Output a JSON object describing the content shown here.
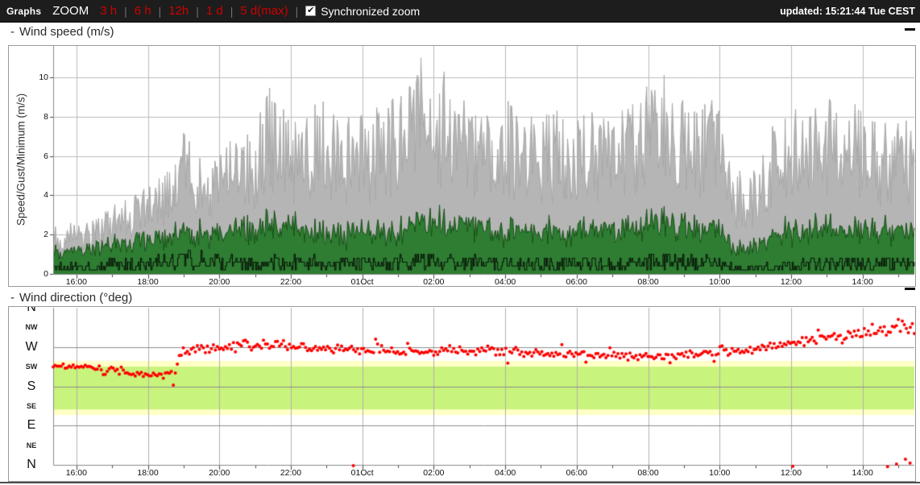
{
  "topbar": {
    "app_label": "Graphs",
    "zoom_label": "ZOOM",
    "zoom_ranges": [
      "3 h",
      "6 h",
      "12h",
      "1 d",
      "5 d(max)"
    ],
    "divider": "|",
    "sync_checkbox": {
      "checked": true,
      "label": "Synchronized zoom",
      "check_glyph": "✔"
    },
    "updated": "updated: 15:21:44 Tue CEST",
    "colors": {
      "bar_bg": "#1d1d1d",
      "link_red": "#d00000",
      "text": "#ffffff"
    }
  },
  "panels": [
    {
      "prefix": "-",
      "title": "Wind speed (m/s)"
    },
    {
      "prefix": "-",
      "title": "Wind direction (°deg)"
    }
  ],
  "chart_data": [
    {
      "type": "area",
      "title": "Wind speed (m/s)",
      "ylabel": "Speed/Gust/Minimum (m/s)",
      "ylim": [
        0,
        11.6
      ],
      "yticks": [
        0,
        2,
        4,
        6,
        8,
        10
      ],
      "x_hours_total": 24.1,
      "x_start_time": "15:21",
      "xticks": [
        {
          "t": 0.65,
          "label": "16:00"
        },
        {
          "t": 2.65,
          "label": "18:00"
        },
        {
          "t": 4.65,
          "label": "20:00"
        },
        {
          "t": 6.65,
          "label": "22:00"
        },
        {
          "t": 8.65,
          "label": "01Oct"
        },
        {
          "t": 10.65,
          "label": "02:00"
        },
        {
          "t": 12.65,
          "label": "04:00"
        },
        {
          "t": 14.65,
          "label": "06:00"
        },
        {
          "t": 16.65,
          "label": "08:00"
        },
        {
          "t": 18.65,
          "label": "10:00"
        },
        {
          "t": 20.65,
          "label": "12:00"
        },
        {
          "t": 22.65,
          "label": "14:00"
        }
      ],
      "grid_color": "#bbbbbb",
      "axis_color": "#888888",
      "samples": 740,
      "seed": 77,
      "representation": "envelope keyframes [hours_from_start, m/s] + noise texture",
      "series": [
        {
          "name": "gust",
          "kind": "area",
          "fill": "#b5b5b5",
          "stroke": "#a6a6a6",
          "noise_base": 0.45,
          "noise_span": 0.62,
          "envelope": [
            [
              0,
              2.4
            ],
            [
              0.8,
              2.6
            ],
            [
              1.6,
              3.2
            ],
            [
              2.3,
              3.9
            ],
            [
              3.0,
              4.8
            ],
            [
              3.4,
              5.2
            ],
            [
              3.7,
              7.8
            ],
            [
              4.1,
              5.6
            ],
            [
              4.7,
              6.3
            ],
            [
              5.4,
              6.6
            ],
            [
              6.1,
              9.0
            ],
            [
              6.7,
              7.2
            ],
            [
              7.6,
              8.6
            ],
            [
              8.5,
              7.4
            ],
            [
              9.6,
              8.9
            ],
            [
              10.35,
              10.5
            ],
            [
              10.7,
              8.2
            ],
            [
              11.0,
              10.6
            ],
            [
              11.7,
              7.6
            ],
            [
              12.6,
              8.6
            ],
            [
              13.5,
              7.6
            ],
            [
              14.6,
              8.2
            ],
            [
              15.6,
              7.2
            ],
            [
              16.4,
              8.6
            ],
            [
              17.0,
              9.9
            ],
            [
              17.8,
              7.8
            ],
            [
              18.5,
              8.8
            ],
            [
              19.0,
              5.2
            ],
            [
              19.5,
              4.6
            ],
            [
              20.2,
              7.6
            ],
            [
              21.2,
              8.2
            ],
            [
              22.0,
              8.8
            ],
            [
              23.0,
              7.4
            ],
            [
              24.1,
              7.8
            ]
          ]
        },
        {
          "name": "speed",
          "kind": "area",
          "fill": "#2e7d32",
          "stroke": "#155015",
          "noise_base": 0.4,
          "noise_span": 0.62,
          "envelope": [
            [
              0,
              1.6
            ],
            [
              1,
              1.8
            ],
            [
              2,
              2.2
            ],
            [
              3,
              2.5
            ],
            [
              3.7,
              2.8
            ],
            [
              4.7,
              2.9
            ],
            [
              6.1,
              3.4
            ],
            [
              7.6,
              3.0
            ],
            [
              8.5,
              2.8
            ],
            [
              9.6,
              3.1
            ],
            [
              10.35,
              3.5
            ],
            [
              11.0,
              3.6
            ],
            [
              12.6,
              3.1
            ],
            [
              13.5,
              2.9
            ],
            [
              14.6,
              3.2
            ],
            [
              15.6,
              2.9
            ],
            [
              16.4,
              3.2
            ],
            [
              17.0,
              3.7
            ],
            [
              18.5,
              3.1
            ],
            [
              19.0,
              2.0
            ],
            [
              19.5,
              1.8
            ],
            [
              20.2,
              2.9
            ],
            [
              21.2,
              3.2
            ],
            [
              22.0,
              3.4
            ],
            [
              23.0,
              3.0
            ],
            [
              24.1,
              3.1
            ]
          ]
        },
        {
          "name": "minimum",
          "kind": "stepline",
          "stroke": "#000000",
          "noise_base": 0.55,
          "noise_span": 0.75,
          "quantize": 0.2,
          "envelope": [
            [
              0,
              0.6
            ],
            [
              1.5,
              0.8
            ],
            [
              3,
              1.0
            ],
            [
              3.7,
              1.3
            ],
            [
              5,
              1.0
            ],
            [
              6.5,
              1.1
            ],
            [
              8,
              0.9
            ],
            [
              9.6,
              1.0
            ],
            [
              10.7,
              1.2
            ],
            [
              12.5,
              0.9
            ],
            [
              14,
              1.0
            ],
            [
              16,
              0.9
            ],
            [
              17,
              1.1
            ],
            [
              18.5,
              1.0
            ],
            [
              19.2,
              0.5
            ],
            [
              20,
              0.6
            ],
            [
              21,
              0.9
            ],
            [
              22,
              1.0
            ],
            [
              23.5,
              0.9
            ],
            [
              24.1,
              0.9
            ]
          ]
        }
      ]
    },
    {
      "type": "scatter",
      "title": "Wind direction (°deg)",
      "ylim_deg": [
        0,
        360
      ],
      "yticks": [
        {
          "deg": 360,
          "label": "N",
          "major": true
        },
        {
          "deg": 315,
          "label": "NW",
          "major": false
        },
        {
          "deg": 270,
          "label": "W",
          "major": true
        },
        {
          "deg": 225,
          "label": "SW",
          "major": false
        },
        {
          "deg": 180,
          "label": "S",
          "major": true
        },
        {
          "deg": 135,
          "label": "SE",
          "major": false
        },
        {
          "deg": 90,
          "label": "E",
          "major": true
        },
        {
          "deg": 45,
          "label": "NE",
          "major": false
        },
        {
          "deg": 0,
          "label": "N",
          "major": true
        }
      ],
      "grid_degs": [
        270,
        180,
        90
      ],
      "band": {
        "outer_deg": [
          114,
          238
        ],
        "inner_deg": [
          127,
          225
        ],
        "outer_color": "#ffffc6",
        "inner_color": "#c8f37c"
      },
      "x_hours_total": 24.1,
      "xticks": [
        {
          "t": 0.65,
          "label": "16:00"
        },
        {
          "t": 2.65,
          "label": "18:00"
        },
        {
          "t": 4.65,
          "label": "20:00"
        },
        {
          "t": 6.65,
          "label": "22:00"
        },
        {
          "t": 8.65,
          "label": "01Oct"
        },
        {
          "t": 10.65,
          "label": "02:00"
        },
        {
          "t": 12.65,
          "label": "04:00"
        },
        {
          "t": 14.65,
          "label": "06:00"
        },
        {
          "t": 16.65,
          "label": "08:00"
        },
        {
          "t": 18.65,
          "label": "10:00"
        },
        {
          "t": 20.65,
          "label": "12:00"
        },
        {
          "t": 22.65,
          "label": "14:00"
        }
      ],
      "grid_color_v": "#b0b0b0",
      "grid_color_h": "#8c8c8c",
      "axis_color": "#888888",
      "dot_color": "#ff0000",
      "dot_radius": 2,
      "samples": 430,
      "seed": 9,
      "representation": "trend keyframes [hours_from_start, mean_deg, jitter_deg] + scatter noise",
      "trend": [
        [
          0,
          227,
          9
        ],
        [
          0.9,
          222,
          9
        ],
        [
          1.7,
          215,
          11
        ],
        [
          2.4,
          208,
          9
        ],
        [
          3.1,
          206,
          9
        ],
        [
          3.45,
          211,
          7
        ],
        [
          3.55,
          258,
          12
        ],
        [
          4.2,
          266,
          13
        ],
        [
          5.2,
          271,
          15
        ],
        [
          6.2,
          273,
          16
        ],
        [
          7.2,
          268,
          13
        ],
        [
          8.3,
          264,
          12
        ],
        [
          9.3,
          262,
          11
        ],
        [
          10.3,
          259,
          10
        ],
        [
          11.3,
          262,
          11
        ],
        [
          12.3,
          261,
          11
        ],
        [
          13.3,
          258,
          11
        ],
        [
          14.3,
          255,
          11
        ],
        [
          15.3,
          252,
          11
        ],
        [
          16.3,
          248,
          11
        ],
        [
          17.3,
          250,
          10
        ],
        [
          18.3,
          256,
          10
        ],
        [
          19.2,
          262,
          10
        ],
        [
          19.9,
          269,
          11
        ],
        [
          20.6,
          279,
          13
        ],
        [
          21.3,
          288,
          14
        ],
        [
          22.0,
          296,
          16
        ],
        [
          22.7,
          305,
          18
        ],
        [
          23.4,
          311,
          19
        ],
        [
          24.1,
          319,
          18
        ]
      ],
      "outliers": [
        [
          8.4,
          -2
        ],
        [
          20.7,
          -3
        ],
        [
          23.35,
          -4
        ],
        [
          23.6,
          2
        ],
        [
          23.85,
          13
        ],
        [
          23.98,
          4
        ]
      ]
    }
  ]
}
